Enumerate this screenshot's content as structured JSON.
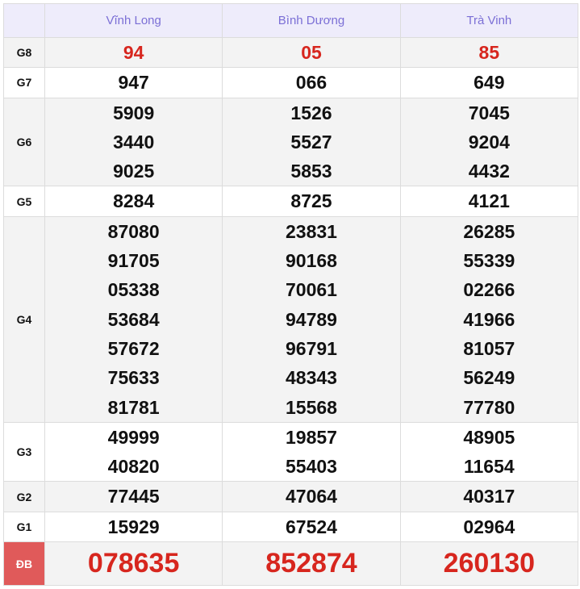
{
  "header": {
    "provinces": [
      "Vĩnh Long",
      "Bình Dương",
      "Trà Vinh"
    ]
  },
  "colors": {
    "header_text": "#7b6fd6",
    "highlight": "#d7261e",
    "db_label_bg": "#e05a5a"
  },
  "rows": [
    {
      "label": "G8",
      "values": [
        [
          "94"
        ],
        [
          "05"
        ],
        [
          "85"
        ]
      ]
    },
    {
      "label": "G7",
      "values": [
        [
          "947"
        ],
        [
          "066"
        ],
        [
          "649"
        ]
      ]
    },
    {
      "label": "G6",
      "values": [
        [
          "5909",
          "3440",
          "9025"
        ],
        [
          "1526",
          "5527",
          "5853"
        ],
        [
          "7045",
          "9204",
          "4432"
        ]
      ]
    },
    {
      "label": "G5",
      "values": [
        [
          "8284"
        ],
        [
          "8725"
        ],
        [
          "4121"
        ]
      ]
    },
    {
      "label": "G4",
      "values": [
        [
          "87080",
          "91705",
          "05338",
          "53684",
          "57672",
          "75633",
          "81781"
        ],
        [
          "23831",
          "90168",
          "70061",
          "94789",
          "96791",
          "48343",
          "15568"
        ],
        [
          "26285",
          "55339",
          "02266",
          "41966",
          "81057",
          "56249",
          "77780"
        ]
      ]
    },
    {
      "label": "G3",
      "values": [
        [
          "49999",
          "40820"
        ],
        [
          "19857",
          "55403"
        ],
        [
          "48905",
          "11654"
        ]
      ]
    },
    {
      "label": "G2",
      "values": [
        [
          "77445"
        ],
        [
          "47064"
        ],
        [
          "40317"
        ]
      ]
    },
    {
      "label": "G1",
      "values": [
        [
          "15929"
        ],
        [
          "67524"
        ],
        [
          "02964"
        ]
      ]
    },
    {
      "label": "ĐB",
      "values": [
        [
          "078635"
        ],
        [
          "852874"
        ],
        [
          "260130"
        ]
      ]
    }
  ]
}
